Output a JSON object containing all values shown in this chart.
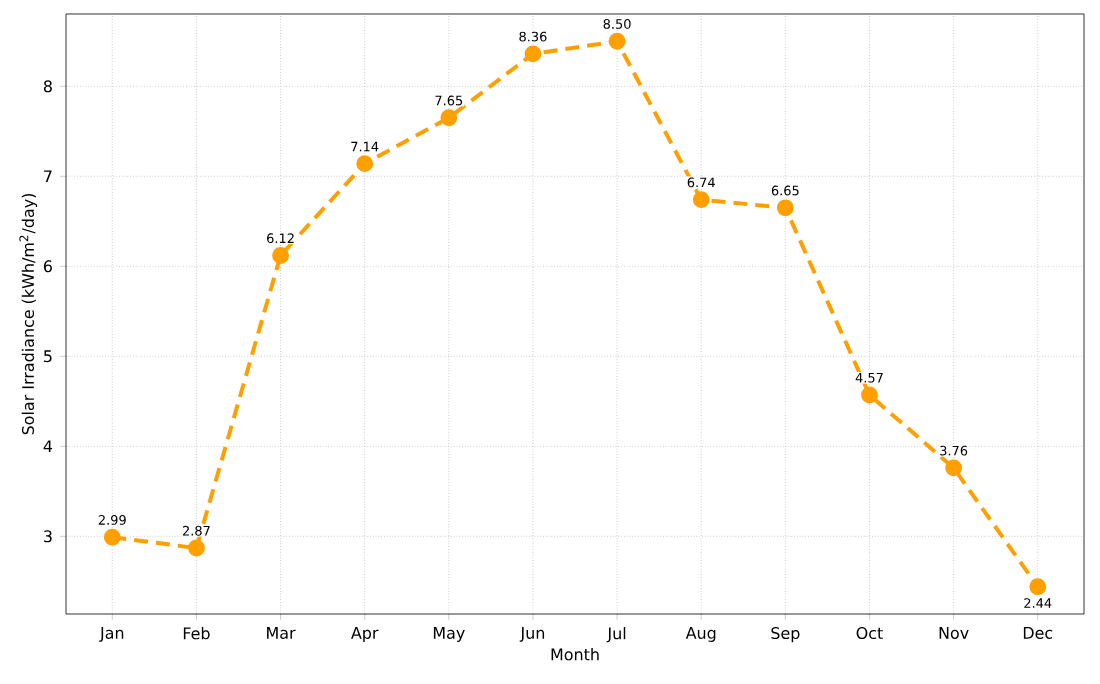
{
  "chart_data": {
    "type": "line",
    "xlabel": "Month",
    "ylabel": "Solar Irradiance (kWh/m$^{2}$/day)",
    "categories": [
      "Jan",
      "Feb",
      "Mar",
      "Apr",
      "May",
      "Jun",
      "Jul",
      "Aug",
      "Sep",
      "Oct",
      "Nov",
      "Dec"
    ],
    "series": [
      {
        "color": "#ffa000",
        "values": [
          2.99,
          2.87,
          6.12,
          7.14,
          7.65,
          8.36,
          8.5,
          6.74,
          6.65,
          4.57,
          3.76,
          2.44
        ],
        "value_labels": [
          "2.99",
          "2.87",
          "6.12",
          "7.14",
          "7.65",
          "8.36",
          "8.50",
          "6.74",
          "6.65",
          "4.57",
          "3.76",
          "2.44"
        ]
      }
    ],
    "ylim": [
      2.137,
      8.803
    ],
    "yticks": [
      3,
      4,
      5,
      6,
      7,
      8
    ],
    "grid": true,
    "marker": "circle",
    "line_style": "dashed"
  }
}
